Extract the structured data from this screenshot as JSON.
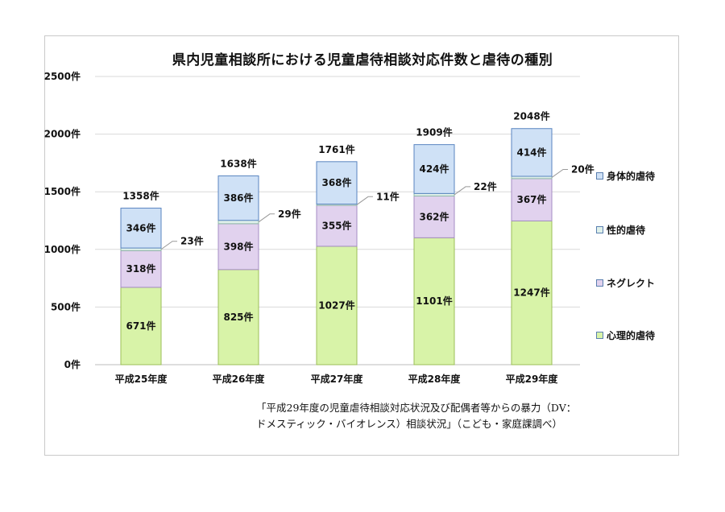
{
  "chart_data": {
    "type": "bar",
    "stacked": true,
    "title": "県内児童相談所における児童虐待相談対応件数と虐待の種別",
    "categories": [
      "平成25年度",
      "平成26年度",
      "平成27年度",
      "平成28年度",
      "平成29年度"
    ],
    "series": [
      {
        "name": "心理的虐待",
        "values": [
          671,
          825,
          1027,
          1101,
          1247
        ],
        "labels": [
          "671件",
          "825件",
          "1027件",
          "1101件",
          "1247件"
        ],
        "color": "#d8f3a8"
      },
      {
        "name": "ネグレクト",
        "values": [
          318,
          398,
          355,
          362,
          367
        ],
        "labels": [
          "318件",
          "398件",
          "355件",
          "362件",
          "367件"
        ],
        "color": "#e1d2ee"
      },
      {
        "name": "性的虐待",
        "values": [
          23,
          29,
          11,
          22,
          20
        ],
        "labels": [
          "23件",
          "29件",
          "11件",
          "22件",
          "20件"
        ],
        "color": "#dff0ea"
      },
      {
        "name": "身体的虐待",
        "values": [
          346,
          386,
          368,
          424,
          414
        ],
        "labels": [
          "346件",
          "386件",
          "368件",
          "424件",
          "414件"
        ],
        "color": "#cfe1f6"
      }
    ],
    "totals": [
      1358,
      1638,
      1761,
      1909,
      2048
    ],
    "total_labels": [
      "1358件",
      "1638件",
      "1761件",
      "1909件",
      "2048件"
    ],
    "yticks": [
      "0件",
      "500件",
      "1000件",
      "1500件",
      "2000件",
      "2500件"
    ],
    "ylim": [
      0,
      2500
    ],
    "grid": true,
    "legend_position": "right"
  },
  "legend": [
    {
      "label": "身体的虐待",
      "color": "#cfe1f6"
    },
    {
      "label": "性的虐待",
      "color": "#dff0ea"
    },
    {
      "label": "ネグレクト",
      "color": "#e1d2ee"
    },
    {
      "label": "心理的虐待",
      "color": "#d8f3a8"
    }
  ],
  "source_line1": "「平成29年度の児童虐待相談対応状況及び配偶者等からの暴力（DV：",
  "source_line2": "ドメスティック・バイオレンス）相談状況」（こども・家庭課調べ）"
}
